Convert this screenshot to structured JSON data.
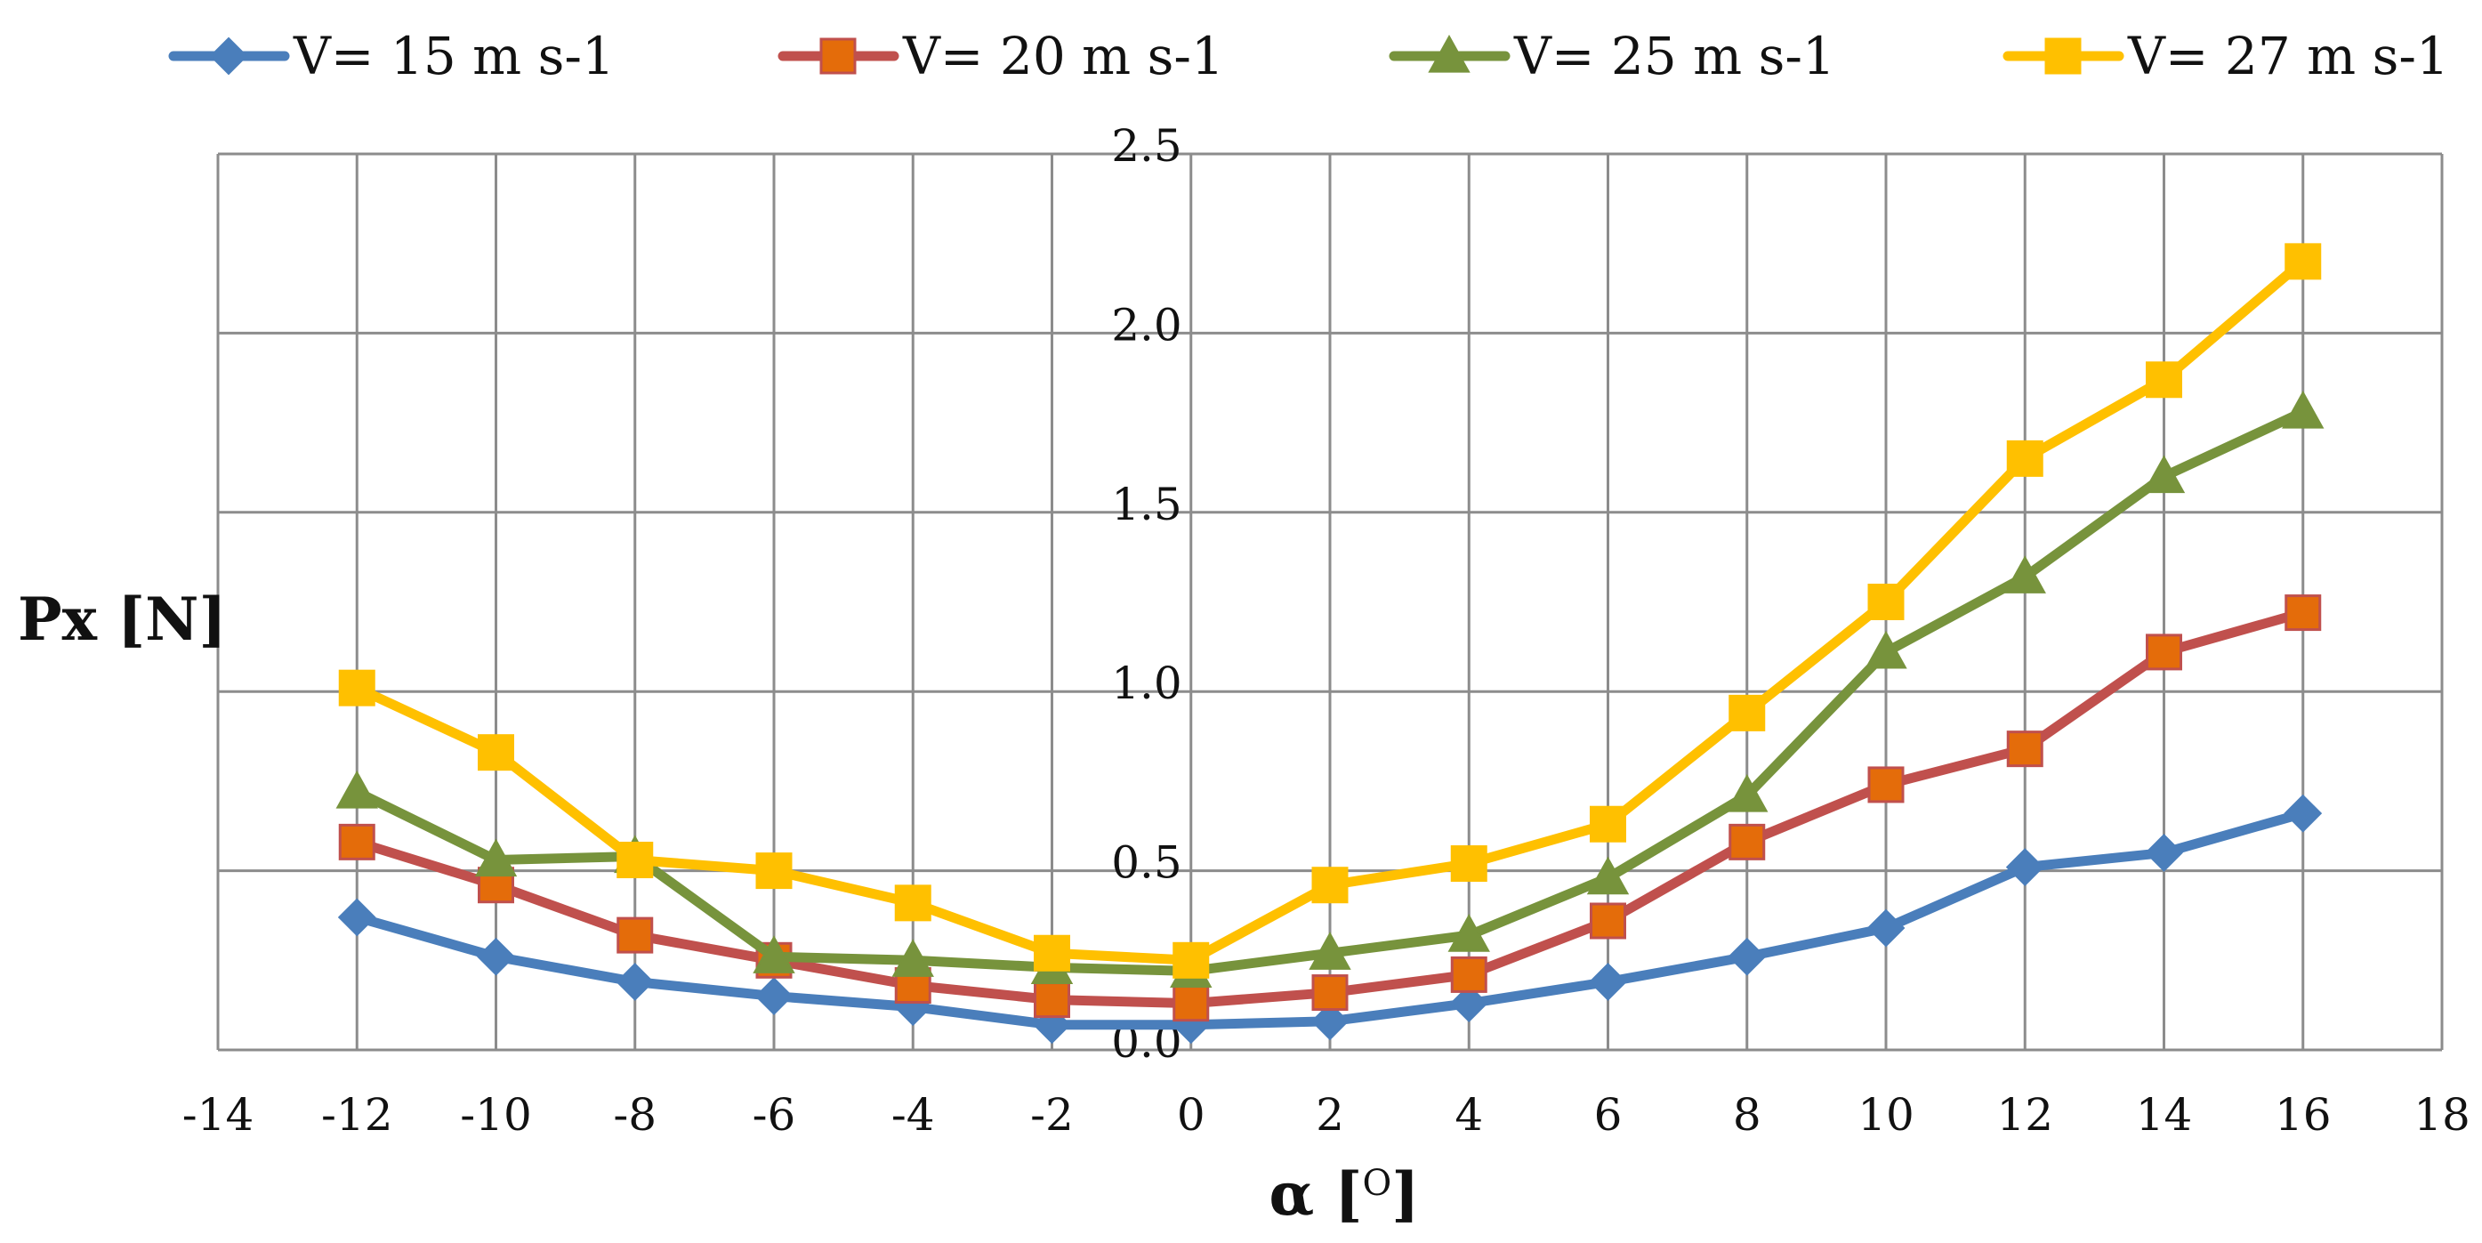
{
  "chart_data": {
    "type": "line",
    "title": "",
    "xlabel": "α [",
    "xlabel_superscript": "O",
    "xlabel_suffix": "]",
    "ylabel": "Px [N]",
    "xlim": [
      -14,
      18
    ],
    "ylim": [
      0.0,
      2.5
    ],
    "x_ticks": [
      -14,
      -12,
      -10,
      -8,
      -6,
      -4,
      -2,
      0,
      2,
      4,
      6,
      8,
      10,
      12,
      14,
      16,
      18
    ],
    "x_tick_labels": [
      "-14",
      "-12",
      "-10",
      "-8",
      "-6",
      "-4",
      "-2",
      "0",
      "2",
      "4",
      "6",
      "8",
      "10",
      "12",
      "14",
      "16",
      "18"
    ],
    "y_ticks": [
      0.0,
      0.5,
      1.0,
      1.5,
      2.0,
      2.5
    ],
    "y_tick_labels": [
      "0.0",
      "0.5",
      "1.0",
      "1.5",
      "2.0",
      "2.5"
    ],
    "grid": true,
    "legend_position": "top",
    "x": [
      -12,
      -10,
      -8,
      -6,
      -4,
      -2,
      0,
      2,
      4,
      6,
      8,
      10,
      12,
      14,
      16
    ],
    "series": [
      {
        "name": "V= 15 m s-1",
        "color": "#4A7EBB",
        "marker": "diamond",
        "values": [
          0.37,
          0.26,
          0.19,
          0.15,
          0.12,
          0.07,
          0.07,
          0.08,
          0.13,
          0.19,
          0.26,
          0.34,
          0.51,
          0.55,
          0.66
        ]
      },
      {
        "name": "V= 20 m s-1",
        "color": "#C0504D",
        "marker_fill": "#E46C0A",
        "marker": "square",
        "values": [
          0.58,
          0.46,
          0.32,
          0.25,
          0.18,
          0.14,
          0.13,
          0.16,
          0.21,
          0.36,
          0.58,
          0.74,
          0.84,
          1.11,
          1.22
        ]
      },
      {
        "name": "V= 25 m s-1",
        "color": "#77933C",
        "marker": "triangle",
        "values": [
          0.72,
          0.53,
          0.54,
          0.26,
          0.25,
          0.23,
          0.22,
          0.27,
          0.32,
          0.48,
          0.71,
          1.11,
          1.32,
          1.6,
          1.78
        ]
      },
      {
        "name": "V= 27 m s-1",
        "color": "#FFC000",
        "marker": "square",
        "values": [
          1.01,
          0.83,
          0.53,
          0.5,
          0.41,
          0.27,
          0.25,
          0.46,
          0.52,
          0.63,
          0.94,
          1.25,
          1.65,
          1.87,
          2.2
        ]
      }
    ]
  }
}
